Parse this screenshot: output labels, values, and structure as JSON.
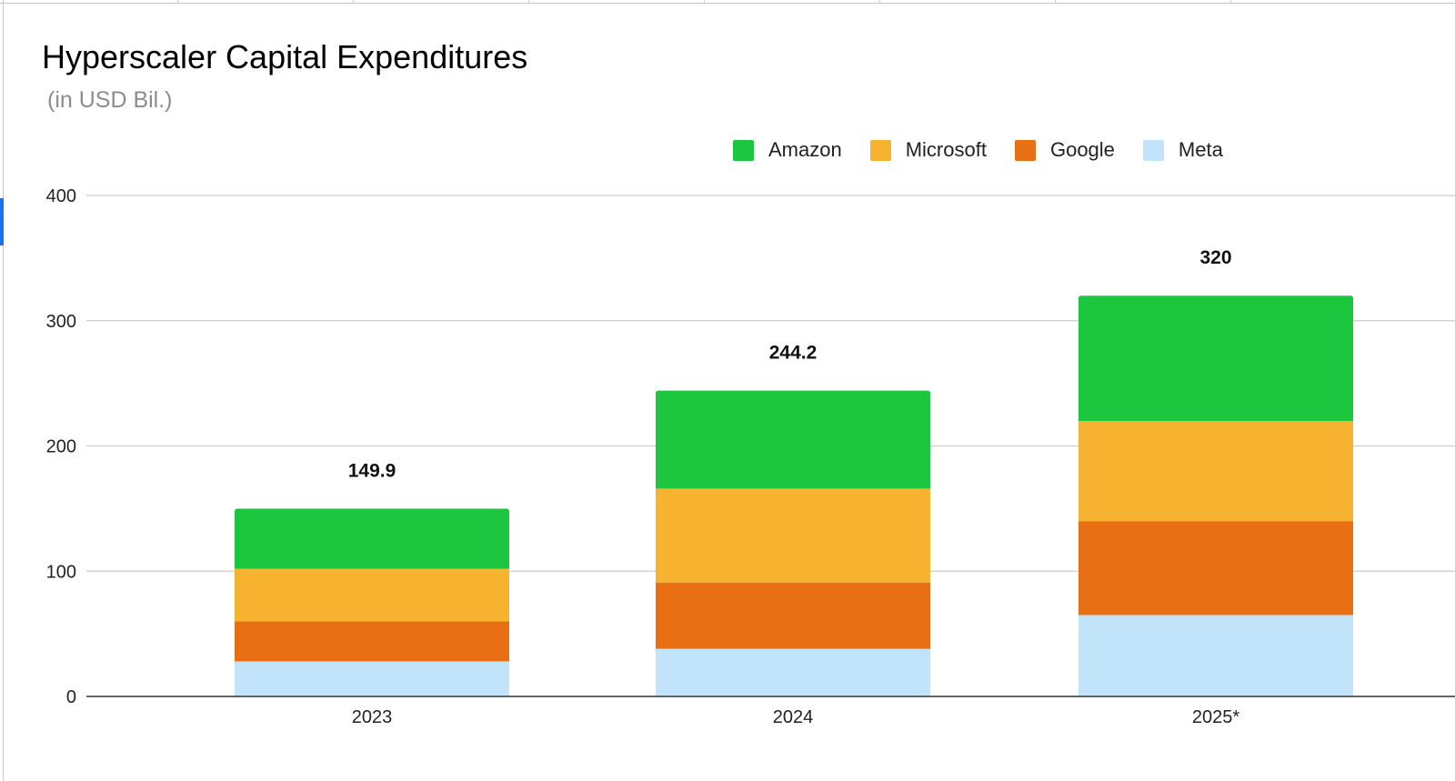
{
  "chart_data": {
    "type": "bar",
    "stacked": true,
    "title": "Hyperscaler Capital Expenditures",
    "subtitle": "(in USD Bil.)",
    "categories": [
      "2023",
      "2024",
      "2025*"
    ],
    "series": [
      {
        "name": "Meta",
        "color": "#c1e4fb",
        "values": [
          28,
          38,
          65
        ]
      },
      {
        "name": "Google",
        "color": "#e86f13",
        "values": [
          32,
          53,
          75
        ]
      },
      {
        "name": "Microsoft",
        "color": "#f7b22f",
        "values": [
          42,
          75,
          80
        ]
      },
      {
        "name": "Amazon",
        "color": "#1cc63f",
        "values": [
          47.9,
          78.2,
          100
        ]
      }
    ],
    "totals": [
      "149.9",
      "244.2",
      "320"
    ],
    "legend_order": [
      "Amazon",
      "Microsoft",
      "Google",
      "Meta"
    ],
    "legend_position": "top-right",
    "ylim": [
      0,
      400
    ],
    "yticks": [
      "0",
      "100",
      "200",
      "300",
      "400"
    ],
    "grid": true,
    "xlabel": "",
    "ylabel": ""
  }
}
